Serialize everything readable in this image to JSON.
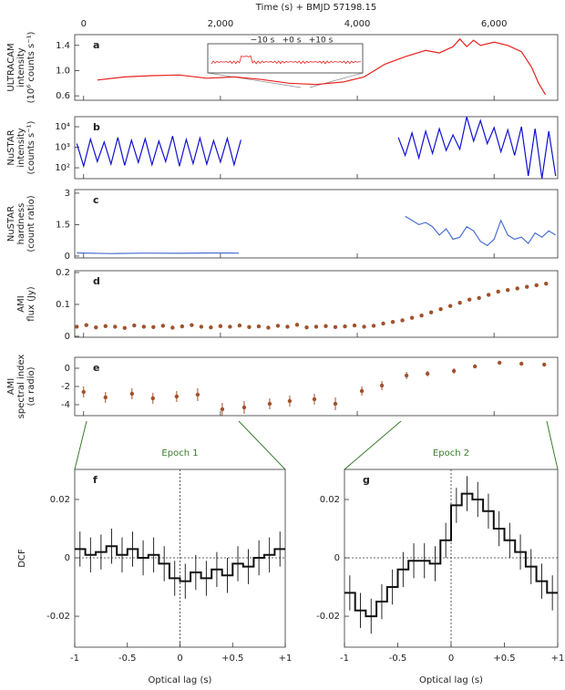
{
  "chart_data": [
    {
      "type": "line",
      "panel": "a",
      "xlabel": "Time (s) + BMJD 57198.15",
      "ylabel": [
        "ULTRACAM",
        "intensity",
        "(10⁶ counts s⁻¹)"
      ],
      "xlim": [
        -130,
        6930
      ],
      "xticks": [
        0,
        {
          "value": 2000,
          "label": "2,000"
        },
        {
          "value": 4000,
          "label": "4,000"
        },
        {
          "value": 6000,
          "label": "6,000"
        }
      ],
      "ylim": [
        0.53,
        1.57
      ],
      "yticks": [
        0.6,
        {
          "value": 1.0,
          "label": "1.0"
        },
        1.4
      ],
      "color": "#e8221f",
      "inset_labels": [
        "−10 s",
        "+0 s",
        "+10 s"
      ],
      "x": [
        200,
        600,
        1000,
        1400,
        1800,
        2200,
        2600,
        3000,
        3400,
        3800,
        4100,
        4400,
        4700,
        5000,
        5200,
        5400,
        5500,
        5600,
        5700,
        5800,
        6000,
        6200,
        6400,
        6550,
        6650,
        6750
      ],
      "values": [
        0.85,
        0.9,
        0.92,
        0.93,
        0.88,
        0.9,
        0.86,
        0.8,
        0.78,
        0.82,
        0.9,
        1.1,
        1.22,
        1.32,
        1.28,
        1.38,
        1.5,
        1.38,
        1.48,
        1.4,
        1.45,
        1.4,
        1.3,
        1.05,
        0.8,
        0.62
      ]
    },
    {
      "type": "line",
      "panel": "b",
      "ylabel": [
        "NuSTAR",
        "intensity",
        "(counts s⁻¹)"
      ],
      "log": true,
      "xlim": [
        -130,
        6930
      ],
      "xticks": [
        0,
        2000,
        4000,
        6000
      ],
      "ylim": [
        29.5,
        30900
      ],
      "yticks": [
        {
          "value": 100,
          "label": "10²"
        },
        {
          "value": 1000,
          "label": "10³"
        },
        {
          "value": 10000,
          "label": "10⁴"
        }
      ],
      "color": "#1010d0",
      "x": [
        -100,
        0,
        100,
        200,
        300,
        400,
        500,
        600,
        700,
        800,
        900,
        1000,
        1100,
        1200,
        1300,
        1400,
        1500,
        1600,
        1700,
        1800,
        1900,
        2000,
        2100,
        2200,
        2300,
        3500,
        4600,
        4700,
        4800,
        4900,
        5000,
        5100,
        5200,
        5300,
        5400,
        5500,
        5600,
        5700,
        5800,
        5900,
        6000,
        6100,
        6200,
        6300,
        6400,
        6500,
        6600,
        6700,
        6800,
        6900
      ],
      "values": [
        1500,
        120,
        2500,
        200,
        1800,
        150,
        3000,
        130,
        2200,
        180,
        2600,
        140,
        2000,
        200,
        3500,
        120,
        2400,
        160,
        2800,
        150,
        2100,
        190,
        2700,
        140,
        2300,
        null,
        3000,
        400,
        5000,
        300,
        6000,
        500,
        8000,
        700,
        4000,
        800,
        30000,
        2000,
        20000,
        1500,
        9000,
        600,
        7000,
        400,
        10000,
        40,
        8000,
        30,
        6000,
        40
      ]
    },
    {
      "type": "line",
      "panel": "c",
      "ylabel": [
        "NuSTAR",
        "hardness",
        "(count ratio)"
      ],
      "xlim": [
        -130,
        6930
      ],
      "xticks": [
        0,
        2000,
        4000,
        6000
      ],
      "ylim": [
        -0.09,
        3.17
      ],
      "yticks": [
        0,
        1.5,
        3
      ],
      "color": "#4a6fd0",
      "x": [
        -100,
        400,
        900,
        1400,
        1900,
        2270,
        3500,
        4700,
        4800,
        4900,
        5000,
        5100,
        5200,
        5300,
        5400,
        5500,
        5600,
        5700,
        5800,
        5900,
        6000,
        6100,
        6200,
        6300,
        6400,
        6500,
        6600,
        6700,
        6800,
        6900
      ],
      "values": [
        0.15,
        0.12,
        0.14,
        0.13,
        0.15,
        0.14,
        null,
        1.9,
        1.7,
        1.5,
        1.6,
        1.4,
        1.0,
        1.3,
        0.8,
        0.9,
        1.4,
        1.2,
        0.7,
        0.5,
        0.8,
        1.7,
        1.0,
        0.8,
        0.9,
        0.6,
        1.1,
        0.9,
        1.2,
        1.0
      ]
    },
    {
      "type": "scatter",
      "panel": "d",
      "ylabel": [
        "AMI",
        "flux (Jy)"
      ],
      "xlim": [
        -130,
        6930
      ],
      "xticks": [
        0,
        2000,
        4000,
        6000
      ],
      "ylim": [
        -0.003,
        0.2057
      ],
      "yticks": [
        0,
        0.1,
        0.2
      ],
      "color": "#a0522d",
      "x": [
        -100,
        40,
        180,
        320,
        460,
        600,
        740,
        880,
        1020,
        1160,
        1300,
        1440,
        1580,
        1720,
        1860,
        2000,
        2140,
        2280,
        2420,
        2560,
        2700,
        2840,
        2980,
        3120,
        3260,
        3400,
        3540,
        3680,
        3820,
        3960,
        4100,
        4240,
        4380,
        4520,
        4660,
        4800,
        4940,
        5080,
        5220,
        5360,
        5500,
        5640,
        5780,
        5920,
        6060,
        6200,
        6340,
        6480,
        6620,
        6760
      ],
      "values": [
        0.03,
        0.035,
        0.028,
        0.032,
        0.03,
        0.026,
        0.034,
        0.03,
        0.029,
        0.033,
        0.027,
        0.031,
        0.035,
        0.03,
        0.028,
        0.032,
        0.03,
        0.034,
        0.029,
        0.031,
        0.027,
        0.033,
        0.03,
        0.036,
        0.028,
        0.03,
        0.032,
        0.029,
        0.031,
        0.034,
        0.03,
        0.033,
        0.04,
        0.045,
        0.05,
        0.058,
        0.065,
        0.075,
        0.085,
        0.095,
        0.105,
        0.115,
        0.12,
        0.13,
        0.14,
        0.145,
        0.15,
        0.155,
        0.16,
        0.165
      ]
    },
    {
      "type": "errorbar",
      "panel": "e",
      "ylabel": [
        "AMI",
        "spectral index",
        "(α radio)"
      ],
      "xlim": [
        -130,
        6930
      ],
      "xticks": [
        0,
        2000,
        4000,
        6000
      ],
      "ylim": [
        -5.2,
        1.2
      ],
      "yticks": [
        -4,
        -2,
        0
      ],
      "color": "#a0522d",
      "x": [
        0,
        320,
        707,
        1013,
        1360,
        1667,
        2027,
        2347,
        2720,
        3013,
        3373,
        3680,
        4067,
        4360,
        4720,
        5027,
        5413,
        5720,
        6080,
        6400,
        6733
      ],
      "values": [
        -2.6,
        -3.2,
        -2.8,
        -3.3,
        -3.1,
        -2.9,
        -4.5,
        -4.3,
        -3.9,
        -3.6,
        -3.4,
        -3.9,
        -2.5,
        -1.9,
        -0.8,
        -0.6,
        -0.3,
        0.2,
        0.6,
        0.5,
        0.4
      ],
      "errors": [
        0.6,
        0.6,
        0.6,
        0.6,
        0.6,
        0.7,
        0.7,
        0.7,
        0.6,
        0.6,
        0.6,
        0.7,
        0.5,
        0.5,
        0.4,
        0.3,
        0.3,
        0.2,
        0.2,
        0.2,
        0.2
      ]
    },
    {
      "type": "step",
      "panel": "f",
      "epoch": "Epoch 1",
      "ylabel": [
        "DCF"
      ],
      "xlabel": "Optical lag (s)",
      "xlim": [
        -1,
        1
      ],
      "xticks": [
        -1,
        -0.5,
        0,
        {
          "value": 0.5,
          "label": "+0.5"
        },
        {
          "value": 1,
          "label": "+1"
        }
      ],
      "ylim": [
        -0.0306,
        0.0303
      ],
      "yticks": [
        -0.02,
        0,
        0.02
      ],
      "color": "#111111",
      "x": [
        -0.95,
        -0.85,
        -0.75,
        -0.65,
        -0.55,
        -0.45,
        -0.35,
        -0.25,
        -0.15,
        -0.05,
        0.05,
        0.15,
        0.25,
        0.35,
        0.45,
        0.55,
        0.65,
        0.75,
        0.85,
        0.95
      ],
      "values": [
        0.003,
        0.001,
        0.002,
        0.004,
        0.001,
        0.003,
        0,
        0.001,
        -0.002,
        -0.007,
        -0.008,
        -0.005,
        -0.007,
        -0.004,
        -0.006,
        -0.002,
        -0.003,
        0,
        0.001,
        0.003
      ],
      "errors": [
        0.006,
        0.006,
        0.006,
        0.006,
        0.006,
        0.006,
        0.006,
        0.006,
        0.006,
        0.006,
        0.006,
        0.006,
        0.006,
        0.006,
        0.006,
        0.006,
        0.006,
        0.006,
        0.006,
        0.006
      ]
    },
    {
      "type": "step",
      "panel": "g",
      "epoch": "Epoch 2",
      "xlabel": "Optical lag (s)",
      "xlim": [
        -1,
        1
      ],
      "xticks": [
        -1,
        -0.5,
        0,
        {
          "value": 0.5,
          "label": "+0.5"
        },
        {
          "value": 1,
          "label": "+1"
        }
      ],
      "ylim": [
        -0.0306,
        0.0303
      ],
      "yticks": [
        -0.02,
        0,
        0.02
      ],
      "color": "#111111",
      "x": [
        -0.95,
        -0.85,
        -0.75,
        -0.65,
        -0.55,
        -0.45,
        -0.35,
        -0.25,
        -0.15,
        -0.05,
        0.05,
        0.15,
        0.25,
        0.35,
        0.45,
        0.55,
        0.65,
        0.75,
        0.85,
        0.95
      ],
      "values": [
        -0.012,
        -0.018,
        -0.02,
        -0.015,
        -0.01,
        -0.004,
        -0.001,
        -0.001,
        -0.002,
        0.006,
        0.018,
        0.022,
        0.02,
        0.016,
        0.01,
        0.006,
        0.002,
        -0.003,
        -0.008,
        -0.012
      ],
      "errors": [
        0.006,
        0.006,
        0.006,
        0.006,
        0.006,
        0.006,
        0.006,
        0.006,
        0.006,
        0.006,
        0.006,
        0.006,
        0.006,
        0.006,
        0.006,
        0.006,
        0.006,
        0.006,
        0.006,
        0.006
      ]
    }
  ]
}
